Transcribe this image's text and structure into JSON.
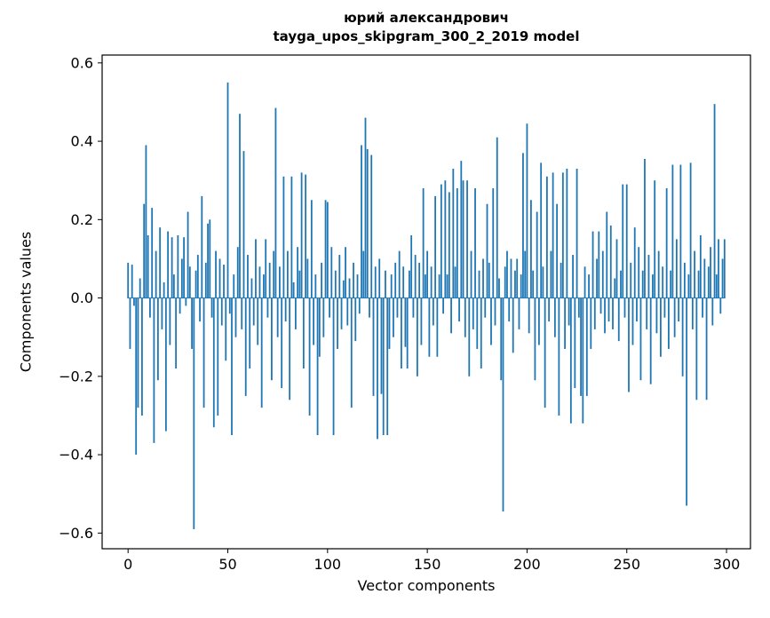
{
  "chart_data": {
    "type": "bar",
    "title_line1": "юрий александрович",
    "title_line2": "tayga_upos_skipgram_300_2_2019 model",
    "xlabel": "Vector components",
    "ylabel": "Components values",
    "bar_color": "#1f77b4",
    "axis_color": "#000000",
    "xlim": [
      -13,
      312
    ],
    "ylim": [
      -0.64,
      0.62
    ],
    "x_tick_values": [
      0,
      50,
      100,
      150,
      200,
      250,
      300
    ],
    "x_tick_labels": [
      "0",
      "50",
      "100",
      "150",
      "200",
      "250",
      "300"
    ],
    "y_tick_values": [
      -0.6,
      -0.4,
      -0.2,
      0.0,
      0.2,
      0.4,
      0.6
    ],
    "y_tick_labels": [
      "−0.6",
      "−0.4",
      "−0.2",
      "0.0",
      "0.2",
      "0.4",
      "0.6"
    ],
    "values": [
      0.09,
      -0.13,
      0.085,
      -0.02,
      -0.4,
      -0.28,
      0.05,
      -0.3,
      0.24,
      0.39,
      0.16,
      -0.05,
      0.23,
      -0.37,
      0.12,
      -0.21,
      0.18,
      -0.08,
      0.04,
      -0.34,
      0.17,
      -0.12,
      0.155,
      0.06,
      -0.18,
      0.16,
      -0.04,
      0.1,
      0.155,
      -0.02,
      0.22,
      0.08,
      -0.13,
      -0.59,
      0.07,
      0.11,
      -0.06,
      0.26,
      -0.28,
      0.09,
      0.19,
      0.2,
      -0.05,
      -0.33,
      0.12,
      -0.3,
      0.1,
      -0.07,
      0.085,
      -0.16,
      0.55,
      -0.04,
      -0.35,
      0.06,
      -0.1,
      0.13,
      0.47,
      -0.08,
      0.375,
      -0.25,
      0.11,
      -0.18,
      0.05,
      -0.07,
      0.15,
      -0.12,
      0.08,
      -0.28,
      0.06,
      0.15,
      -0.05,
      0.09,
      -0.21,
      0.12,
      0.485,
      -0.1,
      0.08,
      -0.23,
      0.31,
      -0.06,
      0.12,
      -0.26,
      0.31,
      0.04,
      -0.08,
      0.13,
      0.07,
      0.32,
      -0.18,
      0.315,
      0.1,
      -0.3,
      0.25,
      -0.12,
      0.06,
      -0.35,
      -0.15,
      0.09,
      -0.1,
      0.25,
      0.245,
      -0.05,
      0.13,
      -0.35,
      0.07,
      -0.13,
      0.11,
      -0.08,
      0.045,
      0.13,
      -0.07,
      0.05,
      -0.28,
      0.09,
      -0.11,
      0.06,
      -0.04,
      0.39,
      0.12,
      0.46,
      0.38,
      -0.05,
      0.365,
      -0.25,
      0.08,
      -0.36,
      0.1,
      -0.245,
      -0.35,
      0.07,
      -0.35,
      -0.13,
      0.06,
      -0.1,
      0.09,
      -0.05,
      0.12,
      -0.18,
      0.08,
      -0.125,
      -0.18,
      0.07,
      0.16,
      -0.05,
      0.11,
      -0.2,
      0.09,
      -0.12,
      0.28,
      0.06,
      0.12,
      -0.15,
      0.08,
      -0.07,
      0.26,
      -0.15,
      0.06,
      0.29,
      -0.04,
      0.3,
      0.06,
      0.27,
      -0.09,
      0.33,
      0.08,
      0.28,
      -0.06,
      0.35,
      0.3,
      -0.1,
      0.3,
      -0.2,
      0.12,
      -0.08,
      0.28,
      -0.13,
      0.07,
      -0.18,
      0.1,
      -0.05,
      0.24,
      0.09,
      -0.12,
      0.28,
      -0.07,
      0.41,
      0.05,
      -0.21,
      -0.545,
      0.08,
      0.12,
      -0.06,
      0.1,
      -0.14,
      0.07,
      0.1,
      -0.08,
      0.06,
      0.37,
      0.12,
      0.445,
      -0.09,
      0.25,
      0.07,
      -0.21,
      0.22,
      -0.12,
      0.345,
      0.08,
      -0.28,
      0.31,
      -0.06,
      0.12,
      0.32,
      -0.1,
      0.24,
      -0.3,
      0.09,
      0.32,
      -0.13,
      0.33,
      -0.07,
      -0.32,
      0.11,
      -0.23,
      0.33,
      -0.05,
      -0.25,
      -0.32,
      0.08,
      -0.25,
      0.06,
      -0.13,
      0.17,
      -0.08,
      0.1,
      0.17,
      -0.04,
      0.12,
      -0.09,
      0.22,
      -0.06,
      0.185,
      -0.08,
      0.05,
      0.15,
      -0.11,
      0.07,
      0.29,
      -0.05,
      0.29,
      -0.24,
      0.09,
      -0.12,
      0.18,
      -0.06,
      0.13,
      -0.21,
      0.07,
      0.355,
      -0.08,
      0.11,
      -0.22,
      0.06,
      0.3,
      -0.09,
      0.12,
      -0.15,
      0.08,
      -0.05,
      0.28,
      -0.13,
      0.07,
      0.34,
      -0.1,
      0.15,
      -0.06,
      0.34,
      -0.2,
      0.09,
      -0.53,
      0.06,
      0.345,
      -0.08,
      0.12,
      -0.26,
      0.07,
      0.16,
      -0.05,
      0.1,
      -0.26,
      0.08,
      0.13,
      -0.07,
      0.495,
      0.06,
      0.15,
      -0.04,
      0.1,
      0.15
    ]
  }
}
